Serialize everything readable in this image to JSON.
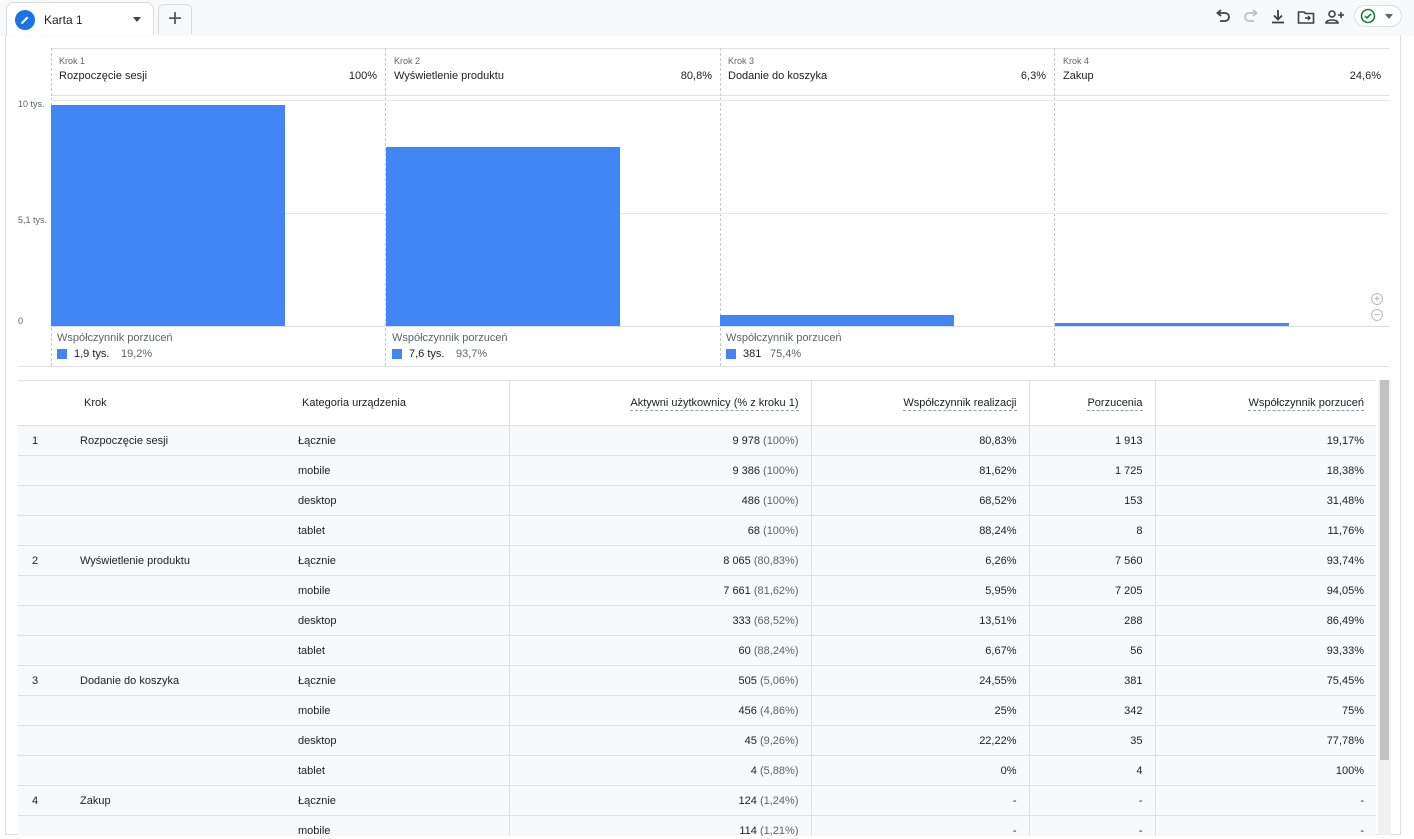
{
  "tab": {
    "label": "Karta 1"
  },
  "toolbar": {
    "add_tab": "+"
  },
  "chart_data": {
    "type": "bar",
    "categories": [
      "Rozpoczęcie sesji",
      "Wyświetlenie produktu",
      "Dodanie do koszyka",
      "Zakup"
    ],
    "values": [
      9978,
      8065,
      505,
      124
    ],
    "ylim": [
      0,
      10200
    ],
    "y_ticks": [
      {
        "value": 10200,
        "label": "10 tys."
      },
      {
        "value": 5100,
        "label": "5,1 tys."
      },
      {
        "value": 0,
        "label": "0"
      }
    ],
    "color": "#4285f4",
    "steps": [
      {
        "num": "Krok 1",
        "name": "Rozpoczęcie sesji",
        "pct": "100%",
        "ab_label": "Współczynnik porzuceń",
        "ab_count": "1,9 tys.",
        "ab_rate": "19,2%"
      },
      {
        "num": "Krok 2",
        "name": "Wyświetlenie produktu",
        "pct": "80,8%",
        "ab_label": "Współczynnik porzuceń",
        "ab_count": "7,6 tys.",
        "ab_rate": "93,7%"
      },
      {
        "num": "Krok 3",
        "name": "Dodanie do koszyka",
        "pct": "6,3%",
        "ab_label": "Współczynnik porzuceń",
        "ab_count": "381",
        "ab_rate": "75,4%"
      },
      {
        "num": "Krok 4",
        "name": "Zakup",
        "pct": "24,6%"
      }
    ]
  },
  "table": {
    "headers": [
      "Krok",
      "Kategoria urządzenia",
      "Aktywni użytkownicy (% z kroku 1)",
      "Współczynnik realizacji",
      "Porzucenia",
      "Współczynnik porzuceń"
    ],
    "rows": [
      {
        "num": "1",
        "step": "Rozpoczęcie sesji",
        "cat": "Łącznie",
        "users": "9 978",
        "users_pct": "(100%)",
        "rate": "80,83%",
        "drop": "1 913",
        "drop_rate": "19,17%"
      },
      {
        "num": "",
        "step": "",
        "cat": "mobile",
        "users": "9 386",
        "users_pct": "(100%)",
        "rate": "81,62%",
        "drop": "1 725",
        "drop_rate": "18,38%"
      },
      {
        "num": "",
        "step": "",
        "cat": "desktop",
        "users": "486",
        "users_pct": "(100%)",
        "rate": "68,52%",
        "drop": "153",
        "drop_rate": "31,48%"
      },
      {
        "num": "",
        "step": "",
        "cat": "tablet",
        "users": "68",
        "users_pct": "(100%)",
        "rate": "88,24%",
        "drop": "8",
        "drop_rate": "11,76%"
      },
      {
        "num": "2",
        "step": "Wyświetlenie produktu",
        "cat": "Łącznie",
        "users": "8 065",
        "users_pct": "(80,83%)",
        "rate": "6,26%",
        "drop": "7 560",
        "drop_rate": "93,74%"
      },
      {
        "num": "",
        "step": "",
        "cat": "mobile",
        "users": "7 661",
        "users_pct": "(81,62%)",
        "rate": "5,95%",
        "drop": "7 205",
        "drop_rate": "94,05%"
      },
      {
        "num": "",
        "step": "",
        "cat": "desktop",
        "users": "333",
        "users_pct": "(68,52%)",
        "rate": "13,51%",
        "drop": "288",
        "drop_rate": "86,49%"
      },
      {
        "num": "",
        "step": "",
        "cat": "tablet",
        "users": "60",
        "users_pct": "(88,24%)",
        "rate": "6,67%",
        "drop": "56",
        "drop_rate": "93,33%"
      },
      {
        "num": "3",
        "step": "Dodanie do koszyka",
        "cat": "Łącznie",
        "users": "505",
        "users_pct": "(5,06%)",
        "rate": "24,55%",
        "drop": "381",
        "drop_rate": "75,45%"
      },
      {
        "num": "",
        "step": "",
        "cat": "mobile",
        "users": "456",
        "users_pct": "(4,86%)",
        "rate": "25%",
        "drop": "342",
        "drop_rate": "75%"
      },
      {
        "num": "",
        "step": "",
        "cat": "desktop",
        "users": "45",
        "users_pct": "(9,26%)",
        "rate": "22,22%",
        "drop": "35",
        "drop_rate": "77,78%"
      },
      {
        "num": "",
        "step": "",
        "cat": "tablet",
        "users": "4",
        "users_pct": "(5,88%)",
        "rate": "0%",
        "drop": "4",
        "drop_rate": "100%"
      },
      {
        "num": "4",
        "step": "Zakup",
        "cat": "Łącznie",
        "users": "124",
        "users_pct": "(1,24%)",
        "rate": "-",
        "drop": "-",
        "drop_rate": "-"
      },
      {
        "num": "",
        "step": "",
        "cat": "mobile",
        "users": "114",
        "users_pct": "(1,21%)",
        "rate": "-",
        "drop": "-",
        "drop_rate": "-"
      }
    ]
  }
}
